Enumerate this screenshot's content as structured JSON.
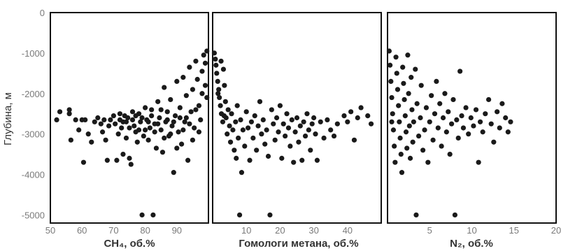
{
  "chart_data": {
    "type": "scatter",
    "ylabel": "Глубина, м",
    "y_ticks": [
      "0",
      "-1000",
      "-2000",
      "-3000",
      "-4000",
      "-5000"
    ],
    "ylim": [
      -5200,
      0
    ],
    "point_color": "#1a1a1a",
    "panels": [
      {
        "xlabel": "CH₄, об.%",
        "xlim": [
          50,
          100
        ],
        "x_ticks": [
          "50",
          "60",
          "70",
          "80",
          "90"
        ],
        "x_tick_values": [
          50,
          60,
          70,
          80,
          90
        ],
        "points": [
          [
            52,
            -2650
          ],
          [
            53,
            -2450
          ],
          [
            56,
            -2400
          ],
          [
            56,
            -2500
          ],
          [
            56.5,
            -3150
          ],
          [
            58,
            -2650
          ],
          [
            59,
            -2900
          ],
          [
            60,
            -2650
          ],
          [
            60.5,
            -3700
          ],
          [
            61,
            -2650
          ],
          [
            62,
            -3000
          ],
          [
            63,
            -3200
          ],
          [
            64,
            -2700
          ],
          [
            65,
            -2600
          ],
          [
            66,
            -2750
          ],
          [
            66.5,
            -2950
          ],
          [
            67,
            -2650
          ],
          [
            67.5,
            -3150
          ],
          [
            68,
            -3650
          ],
          [
            68.5,
            -2800
          ],
          [
            69,
            -2650
          ],
          [
            70,
            -2550
          ],
          [
            70.5,
            -2750
          ],
          [
            71,
            -3650
          ],
          [
            71.5,
            -3000
          ],
          [
            72,
            -2650
          ],
          [
            72.5,
            -2850
          ],
          [
            73,
            -3500
          ],
          [
            73.5,
            -2550
          ],
          [
            74,
            -3100
          ],
          [
            74.5,
            -2600
          ],
          [
            75,
            -3600
          ],
          [
            75.5,
            -3750
          ],
          [
            76,
            -2450
          ],
          [
            76.5,
            -2800
          ],
          [
            77,
            -2950
          ],
          [
            77.5,
            -3200
          ],
          [
            78,
            -2500
          ],
          [
            78.5,
            -2700
          ],
          [
            79,
            -5000
          ],
          [
            79.5,
            -3050
          ],
          [
            80,
            -2350
          ],
          [
            80.5,
            -2650
          ],
          [
            81,
            -3150
          ],
          [
            81.5,
            -2850
          ],
          [
            82,
            -2550
          ],
          [
            82.5,
            -5000
          ],
          [
            83,
            -2750
          ],
          [
            83.5,
            -3350
          ],
          [
            84,
            -2200
          ],
          [
            84.5,
            -2600
          ],
          [
            85,
            -2900
          ],
          [
            85.5,
            -3450
          ],
          [
            86,
            -1850
          ],
          [
            86.5,
            -2700
          ],
          [
            87,
            -2450
          ],
          [
            87.5,
            -3050
          ],
          [
            88,
            -2150
          ],
          [
            88.5,
            -2800
          ],
          [
            89,
            -3950
          ],
          [
            89.5,
            -2550
          ],
          [
            90,
            -1700
          ],
          [
            90.5,
            -2950
          ],
          [
            91,
            -2350
          ],
          [
            91.5,
            -3250
          ],
          [
            92,
            -1600
          ],
          [
            92.5,
            -2700
          ],
          [
            93,
            -2050
          ],
          [
            93.5,
            -3650
          ],
          [
            94,
            -1350
          ],
          [
            94.5,
            -2450
          ],
          [
            95,
            -1900
          ],
          [
            95.5,
            -2850
          ],
          [
            96,
            -1200
          ],
          [
            96.5,
            -1650
          ],
          [
            97,
            -2300
          ],
          [
            97.5,
            -2650
          ],
          [
            98,
            -1450
          ],
          [
            98.5,
            -1050
          ],
          [
            99,
            -1800
          ],
          [
            99.5,
            -950
          ],
          [
            99.5,
            -2100
          ],
          [
            99,
            -1250
          ],
          [
            98,
            -2000
          ],
          [
            97,
            -2950
          ],
          [
            96,
            -2400
          ],
          [
            95,
            -3150
          ],
          [
            94,
            -2750
          ],
          [
            93,
            -2600
          ],
          [
            92,
            -2900
          ],
          [
            91,
            -2600
          ],
          [
            90,
            -3350
          ],
          [
            89,
            -2700
          ],
          [
            88,
            -3000
          ],
          [
            87,
            -2650
          ],
          [
            86,
            -3100
          ],
          [
            85,
            -2400
          ],
          [
            84,
            -2750
          ],
          [
            83,
            -2950
          ],
          [
            82,
            -2400
          ],
          [
            81,
            -2700
          ],
          [
            80,
            -2900
          ],
          [
            79,
            -2600
          ],
          [
            78,
            -2900
          ],
          [
            77,
            -2550
          ],
          [
            76,
            -2650
          ],
          [
            75,
            -2850
          ],
          [
            74,
            -2700
          ],
          [
            73,
            -2700
          ],
          [
            72,
            -2500
          ]
        ]
      },
      {
        "xlabel": "Гомологи метана, об.%",
        "xlim": [
          0,
          50
        ],
        "x_ticks": [
          "10",
          "20",
          "30",
          "40"
        ],
        "x_tick_values": [
          10,
          20,
          30,
          40
        ],
        "points": [
          [
            0.5,
            -1000
          ],
          [
            0.8,
            -1150
          ],
          [
            1,
            -1300
          ],
          [
            1.2,
            -1500
          ],
          [
            1.5,
            -1700
          ],
          [
            1.8,
            -1900
          ],
          [
            2,
            -2100
          ],
          [
            2.3,
            -2300
          ],
          [
            2.6,
            -2500
          ],
          [
            3,
            -2700
          ],
          [
            3.2,
            -1400
          ],
          [
            3.5,
            -1800
          ],
          [
            3.8,
            -2200
          ],
          [
            4,
            -2600
          ],
          [
            4.3,
            -3000
          ],
          [
            4.6,
            -2400
          ],
          [
            5,
            -2800
          ],
          [
            5.3,
            -3200
          ],
          [
            5.6,
            -2500
          ],
          [
            6,
            -2900
          ],
          [
            6.4,
            -3400
          ],
          [
            6.8,
            -2700
          ],
          [
            7,
            -3600
          ],
          [
            7.3,
            -2300
          ],
          [
            7.6,
            -3100
          ],
          [
            8,
            -5000
          ],
          [
            8.3,
            -2650
          ],
          [
            8.6,
            -3950
          ],
          [
            9,
            -2900
          ],
          [
            9.5,
            -3300
          ],
          [
            10,
            -2450
          ],
          [
            10.5,
            -2850
          ],
          [
            11,
            -3650
          ],
          [
            11.5,
            -2700
          ],
          [
            12,
            -3100
          ],
          [
            12.5,
            -2550
          ],
          [
            13,
            -3400
          ],
          [
            13.5,
            -2800
          ],
          [
            14,
            -2200
          ],
          [
            14.5,
            -3000
          ],
          [
            15,
            -2650
          ],
          [
            15.5,
            -3250
          ],
          [
            16,
            -2900
          ],
          [
            16.5,
            -3550
          ],
          [
            17,
            -5000
          ],
          [
            17.5,
            -2400
          ],
          [
            18,
            -2750
          ],
          [
            18.5,
            -3150
          ],
          [
            19,
            -2600
          ],
          [
            19.5,
            -2950
          ],
          [
            20,
            -2300
          ],
          [
            20.5,
            -3600
          ],
          [
            21,
            -2750
          ],
          [
            21.5,
            -3050
          ],
          [
            22,
            -2500
          ],
          [
            22.5,
            -2850
          ],
          [
            23,
            -3300
          ],
          [
            23.5,
            -2650
          ],
          [
            24,
            -3700
          ],
          [
            24.5,
            -2950
          ],
          [
            25,
            -2600
          ],
          [
            25.5,
            -3200
          ],
          [
            26,
            -2800
          ],
          [
            26.5,
            -3650
          ],
          [
            27,
            -2700
          ],
          [
            27.5,
            -3050
          ],
          [
            28,
            -2500
          ],
          [
            28.5,
            -2900
          ],
          [
            29,
            -3400
          ],
          [
            29.5,
            -2750
          ],
          [
            30,
            -2600
          ],
          [
            30.5,
            -3000
          ],
          [
            31,
            -3650
          ],
          [
            32,
            -2700
          ],
          [
            33,
            -3100
          ],
          [
            34,
            -2650
          ],
          [
            35,
            -2900
          ],
          [
            36,
            -3050
          ],
          [
            37,
            -2750
          ],
          [
            39,
            -2550
          ],
          [
            40,
            -2700
          ],
          [
            41,
            -2450
          ],
          [
            42,
            -3150
          ],
          [
            43,
            -2600
          ],
          [
            44,
            -2350
          ],
          [
            46,
            -2550
          ],
          [
            47,
            -2750
          ],
          [
            2.5,
            -1200
          ],
          [
            1.6,
            -2000
          ],
          [
            3.4,
            -2550
          ]
        ]
      },
      {
        "xlabel": "N₂, об.%",
        "xlim": [
          0,
          20
        ],
        "x_ticks": [
          "5",
          "10",
          "15",
          "20"
        ],
        "x_tick_values": [
          5,
          10,
          15,
          20
        ],
        "points": [
          [
            0.2,
            -950
          ],
          [
            0.3,
            -1300
          ],
          [
            0.4,
            -1700
          ],
          [
            0.5,
            -2100
          ],
          [
            0.6,
            -2500
          ],
          [
            0.7,
            -2900
          ],
          [
            0.8,
            -3300
          ],
          [
            0.9,
            -3700
          ],
          [
            1,
            -1100
          ],
          [
            1.1,
            -1500
          ],
          [
            1.2,
            -1900
          ],
          [
            1.3,
            -2300
          ],
          [
            1.4,
            -2700
          ],
          [
            1.5,
            -3100
          ],
          [
            1.6,
            -3500
          ],
          [
            1.7,
            -3950
          ],
          [
            1.8,
            -1350
          ],
          [
            1.9,
            -1750
          ],
          [
            2,
            -2150
          ],
          [
            2.1,
            -2550
          ],
          [
            2.2,
            -2950
          ],
          [
            2.3,
            -3350
          ],
          [
            2.4,
            -1050
          ],
          [
            2.5,
            -2000
          ],
          [
            2.6,
            -2800
          ],
          [
            2.7,
            -3600
          ],
          [
            2.8,
            -1600
          ],
          [
            2.9,
            -2400
          ],
          [
            3,
            -3200
          ],
          [
            3.1,
            -2700
          ],
          [
            3.3,
            -1400
          ],
          [
            3.4,
            -5000
          ],
          [
            3.5,
            -2250
          ],
          [
            3.7,
            -3050
          ],
          [
            3.9,
            -2600
          ],
          [
            4,
            -1800
          ],
          [
            4.2,
            -3400
          ],
          [
            4.4,
            -2900
          ],
          [
            4.6,
            -2350
          ],
          [
            4.8,
            -3700
          ],
          [
            5,
            -2700
          ],
          [
            5.2,
            -2050
          ],
          [
            5.4,
            -3150
          ],
          [
            5.6,
            -2500
          ],
          [
            5.8,
            -1700
          ],
          [
            6,
            -2850
          ],
          [
            6.2,
            -2250
          ],
          [
            6.4,
            -3300
          ],
          [
            6.6,
            -2600
          ],
          [
            6.8,
            -2000
          ],
          [
            7,
            -2950
          ],
          [
            7.2,
            -2450
          ],
          [
            7.4,
            -3500
          ],
          [
            7.6,
            -2750
          ],
          [
            7.8,
            -2150
          ],
          [
            8,
            -5000
          ],
          [
            8.2,
            -2650
          ],
          [
            8.4,
            -3100
          ],
          [
            8.6,
            -1450
          ],
          [
            8.8,
            -2550
          ],
          [
            9,
            -2850
          ],
          [
            9.3,
            -2350
          ],
          [
            9.6,
            -3000
          ],
          [
            9.9,
            -2600
          ],
          [
            10.2,
            -2800
          ],
          [
            10.5,
            -2400
          ],
          [
            10.8,
            -3700
          ],
          [
            11,
            -2700
          ],
          [
            11.3,
            -2950
          ],
          [
            11.6,
            -2500
          ],
          [
            12,
            -2150
          ],
          [
            12.3,
            -2750
          ],
          [
            12.6,
            -3200
          ],
          [
            13,
            -2450
          ],
          [
            13.3,
            -2850
          ],
          [
            13.6,
            -2250
          ],
          [
            14,
            -2600
          ],
          [
            14.3,
            -2950
          ],
          [
            14.6,
            -2700
          ],
          [
            0.5,
            -2700
          ]
        ]
      }
    ]
  }
}
